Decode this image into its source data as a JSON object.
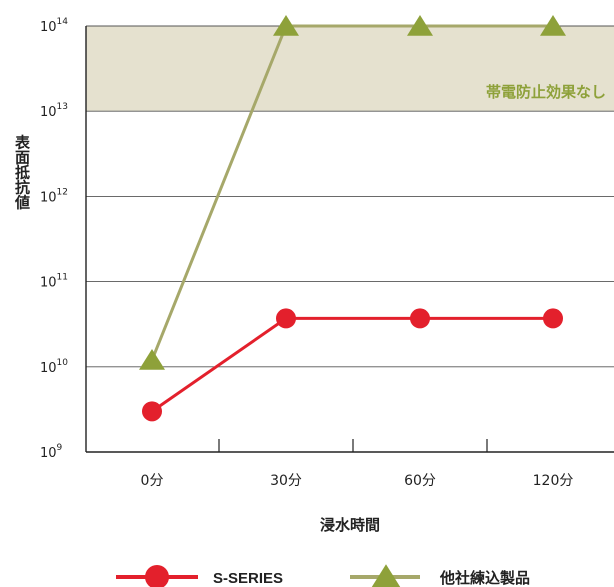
{
  "chart_data": {
    "type": "line",
    "categories": [
      "0分",
      "30分",
      "60分",
      "120分"
    ],
    "xlabel": "浸水時間",
    "ylabel": "表面抵抗値",
    "y_scale": "log",
    "ylim": [
      1000000000.0,
      100000000000000.0
    ],
    "y_ticks": [
      {
        "base": "10",
        "exp": "9"
      },
      {
        "base": "10",
        "exp": "10"
      },
      {
        "base": "10",
        "exp": "11"
      },
      {
        "base": "10",
        "exp": "12"
      },
      {
        "base": "10",
        "exp": "13"
      },
      {
        "base": "10",
        "exp": "14"
      }
    ],
    "grid": true,
    "band": {
      "from": 10000000000000.0,
      "to": 100000000000000.0,
      "label": "帯電防止効果なし",
      "color": "#e5e1cf",
      "label_color": "#8ea13a"
    },
    "legend_position": "bottom",
    "series": [
      {
        "name": "S-SERIES",
        "marker": "circle",
        "color": "#e3202c",
        "values": [
          3000000000.0,
          37000000000.0,
          37000000000.0,
          37000000000.0
        ]
      },
      {
        "name": "他社練込製品",
        "marker": "triangle",
        "line_color": "#a6a86a",
        "marker_color": "#8ea13a",
        "values": [
          12000000000.0,
          100000000000000.0,
          100000000000000.0,
          100000000000000.0
        ]
      }
    ]
  }
}
